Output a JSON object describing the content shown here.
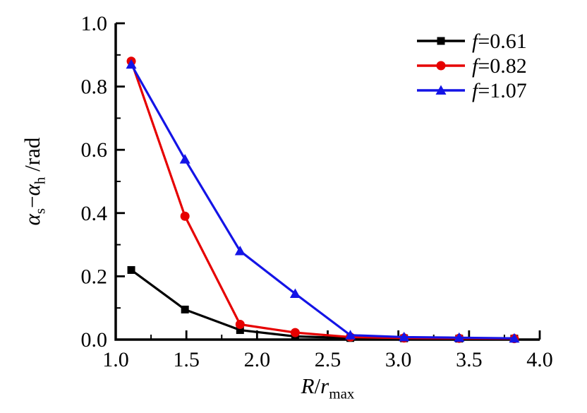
{
  "figure": {
    "background": "#ffffff"
  },
  "chart_data": {
    "type": "line",
    "title": "",
    "xlabel": "R/r_max",
    "ylabel": "α_s−α_h /rad",
    "xlabel_rich": [
      {
        "t": "R",
        "s": "i"
      },
      {
        "t": "/",
        "s": ""
      },
      {
        "t": "r",
        "s": "i"
      },
      {
        "t": "max",
        "s": "sub"
      }
    ],
    "ylabel_rich": [
      {
        "t": "α",
        "s": "i"
      },
      {
        "t": "s",
        "s": "sub"
      },
      {
        "t": "−",
        "s": ""
      },
      {
        "t": "α",
        "s": "i"
      },
      {
        "t": "h",
        "s": "sub"
      },
      {
        "t": " /rad",
        "s": ""
      }
    ],
    "xlim": [
      1.0,
      4.0
    ],
    "ylim": [
      0.0,
      1.0
    ],
    "grid": false,
    "axis_color": "#000000",
    "x_major_ticks": [
      1.0,
      1.5,
      2.0,
      2.5,
      3.0,
      3.5,
      4.0
    ],
    "x_major_tick_labels": [
      "1.0",
      "1.5",
      "2.0",
      "2.5",
      "3.0",
      "3.5",
      "4.0"
    ],
    "x_minor_step": 0.25,
    "y_major_ticks": [
      0.0,
      0.2,
      0.4,
      0.6,
      0.8,
      1.0
    ],
    "y_major_tick_labels": [
      "0.0",
      "0.2",
      "0.4",
      "0.6",
      "0.8",
      "1.0"
    ],
    "y_minor_step": 0.1,
    "legend_position": "top-right-inside",
    "x": [
      1.11,
      1.49,
      1.88,
      2.27,
      2.66,
      3.04,
      3.43,
      3.82
    ],
    "series": [
      {
        "name": "f=0.61",
        "name_rich": [
          {
            "t": "f",
            "s": "i"
          },
          {
            "t": "=0.61",
            "s": ""
          }
        ],
        "color": "#000000",
        "marker": "square",
        "values": [
          0.22,
          0.095,
          0.03,
          0.01,
          0.005,
          0.004,
          0.003,
          0.003
        ]
      },
      {
        "name": "f=0.82",
        "name_rich": [
          {
            "t": "f",
            "s": "i"
          },
          {
            "t": "=0.82",
            "s": ""
          }
        ],
        "color": "#e60000",
        "marker": "circle",
        "values": [
          0.88,
          0.39,
          0.048,
          0.022,
          0.008,
          0.005,
          0.004,
          0.003
        ]
      },
      {
        "name": "f=1.07",
        "name_rich": [
          {
            "t": "f",
            "s": "i"
          },
          {
            "t": "=1.07",
            "s": ""
          }
        ],
        "color": "#1414e6",
        "marker": "triangle",
        "values": [
          0.87,
          0.57,
          0.28,
          0.145,
          0.014,
          0.008,
          0.006,
          0.004
        ]
      }
    ]
  }
}
